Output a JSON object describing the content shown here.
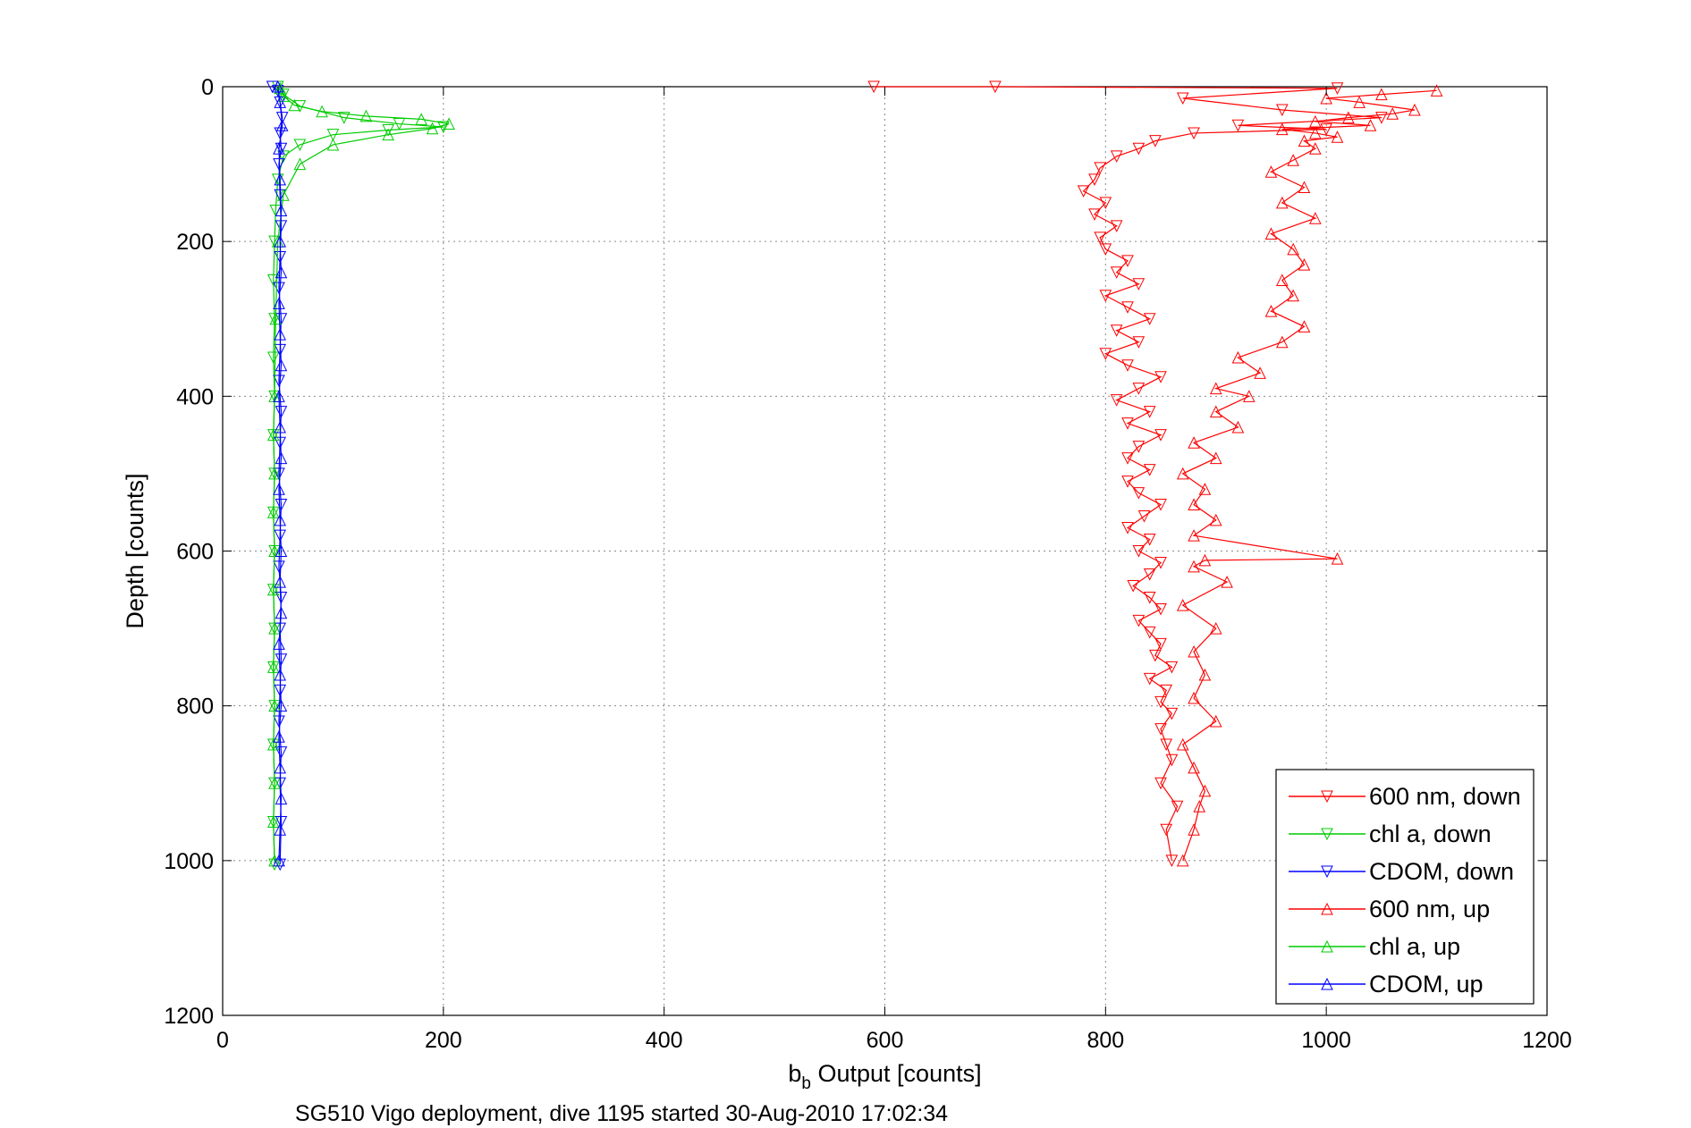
{
  "chart_data": {
    "type": "line",
    "xlabel_main": "b",
    "xlabel_sub": "b",
    "xlabel_rest": " Output [counts]",
    "ylabel": "Depth [counts]",
    "caption": "SG510 Vigo deployment, dive 1195 started 30-Aug-2010 17:02:34",
    "xlim": [
      0,
      1200
    ],
    "ylim": [
      0,
      1200
    ],
    "y_reversed": true,
    "grid": true,
    "legend_position": "bottom-right",
    "xticks": [
      "0",
      "200",
      "400",
      "600",
      "800",
      "1000",
      "1200"
    ],
    "yticks": [
      "0",
      "200",
      "400",
      "600",
      "800",
      "1000",
      "1200"
    ],
    "series": [
      {
        "name": "600 nm, down",
        "color": "#ff0000",
        "marker": "triangle-down",
        "x": [
          590,
          700,
          1010,
          870,
          960,
          1050,
          920,
          1000,
          880,
          845,
          830,
          810,
          795,
          790,
          780,
          800,
          790,
          810,
          795,
          800,
          820,
          810,
          830,
          800,
          820,
          840,
          810,
          830,
          800,
          820,
          850,
          830,
          810,
          840,
          820,
          850,
          830,
          820,
          840,
          820,
          830,
          850,
          835,
          820,
          840,
          830,
          850,
          840,
          825,
          840,
          850,
          830,
          840,
          850,
          845,
          860,
          840,
          855,
          850,
          860,
          850,
          855,
          860,
          850,
          865,
          855,
          860
        ],
        "y": [
          0,
          0,
          2,
          15,
          30,
          40,
          50,
          55,
          60,
          70,
          80,
          90,
          105,
          120,
          135,
          150,
          165,
          180,
          195,
          210,
          225,
          240,
          255,
          270,
          285,
          300,
          315,
          330,
          345,
          360,
          375,
          390,
          405,
          420,
          435,
          450,
          465,
          480,
          495,
          510,
          525,
          540,
          555,
          570,
          585,
          600,
          615,
          630,
          645,
          660,
          675,
          690,
          705,
          720,
          735,
          750,
          765,
          780,
          795,
          810,
          830,
          850,
          870,
          900,
          930,
          960,
          1000
        ]
      },
      {
        "name": "chl a, down",
        "color": "#00cc00",
        "marker": "triangle-down",
        "x": [
          50,
          55,
          70,
          110,
          160,
          200,
          150,
          100,
          70,
          55,
          50,
          48,
          47,
          46,
          47,
          46,
          47,
          46,
          47,
          46,
          47,
          46,
          47,
          46,
          47,
          46,
          47,
          46,
          47
        ],
        "y": [
          0,
          10,
          25,
          40,
          48,
          52,
          56,
          62,
          75,
          90,
          120,
          160,
          200,
          250,
          300,
          350,
          400,
          450,
          500,
          550,
          600,
          650,
          700,
          750,
          800,
          850,
          900,
          950,
          1005
        ]
      },
      {
        "name": "CDOM, down",
        "color": "#0000ff",
        "marker": "triangle-down",
        "x": [
          45,
          50,
          52,
          54,
          52,
          53,
          51,
          52,
          53,
          52,
          51,
          53,
          52,
          51,
          53,
          52,
          51,
          53,
          52,
          51,
          53,
          52,
          53,
          52,
          51,
          53,
          52,
          53,
          52
        ],
        "y": [
          0,
          5,
          20,
          40,
          60,
          80,
          100,
          140,
          180,
          220,
          260,
          300,
          340,
          380,
          420,
          460,
          500,
          540,
          580,
          620,
          660,
          700,
          740,
          780,
          820,
          860,
          900,
          950,
          1005
        ]
      },
      {
        "name": "600 nm, up",
        "color": "#ff0000",
        "marker": "triangle-up",
        "x": [
          870,
          880,
          885,
          890,
          880,
          870,
          900,
          880,
          890,
          880,
          900,
          870,
          910,
          880,
          890,
          1010,
          880,
          900,
          880,
          890,
          870,
          900,
          880,
          920,
          900,
          930,
          900,
          940,
          920,
          960,
          980,
          950,
          970,
          960,
          980,
          970,
          950,
          990,
          960,
          980,
          950,
          970,
          990,
          980,
          1010,
          990,
          960,
          1040,
          990,
          1020,
          1060,
          1080,
          1030,
          1000,
          1050,
          1100
        ],
        "y": [
          1000,
          960,
          930,
          910,
          880,
          850,
          820,
          790,
          760,
          730,
          700,
          670,
          640,
          620,
          612,
          610,
          580,
          560,
          540,
          520,
          500,
          480,
          460,
          440,
          420,
          400,
          390,
          370,
          350,
          330,
          310,
          290,
          270,
          250,
          230,
          210,
          190,
          170,
          150,
          130,
          110,
          95,
          80,
          70,
          65,
          60,
          55,
          50,
          45,
          40,
          35,
          30,
          20,
          15,
          10,
          5
        ]
      },
      {
        "name": "chl a, up",
        "color": "#00cc00",
        "marker": "triangle-up",
        "x": [
          47,
          46,
          47,
          46,
          47,
          46,
          47,
          46,
          47,
          46,
          47,
          46,
          47,
          48,
          50,
          55,
          70,
          100,
          150,
          190,
          205,
          180,
          130,
          90,
          65,
          55,
          52
        ],
        "y": [
          1000,
          950,
          900,
          850,
          800,
          750,
          700,
          650,
          600,
          550,
          500,
          450,
          400,
          300,
          200,
          140,
          100,
          75,
          62,
          54,
          48,
          42,
          38,
          32,
          24,
          12,
          2
        ]
      },
      {
        "name": "CDOM, up",
        "color": "#0000ff",
        "marker": "triangle-up",
        "x": [
          51,
          52,
          53,
          52,
          51,
          53,
          52,
          51,
          53,
          52,
          53,
          52,
          51,
          53,
          52,
          51,
          53,
          52,
          51,
          53,
          52,
          53,
          52,
          51,
          54,
          52,
          50
        ],
        "y": [
          1000,
          960,
          920,
          880,
          840,
          800,
          760,
          720,
          680,
          640,
          600,
          560,
          520,
          480,
          440,
          400,
          360,
          320,
          280,
          240,
          200,
          160,
          120,
          80,
          50,
          20,
          0
        ]
      }
    ]
  }
}
